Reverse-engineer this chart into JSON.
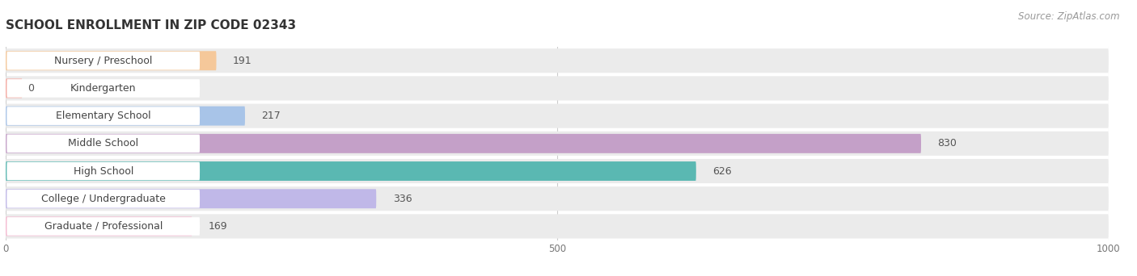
{
  "title": "SCHOOL ENROLLMENT IN ZIP CODE 02343",
  "source": "Source: ZipAtlas.com",
  "categories": [
    "Nursery / Preschool",
    "Kindergarten",
    "Elementary School",
    "Middle School",
    "High School",
    "College / Undergraduate",
    "Graduate / Professional"
  ],
  "values": [
    191,
    0,
    217,
    830,
    626,
    336,
    169
  ],
  "bar_colors": [
    "#f5c89a",
    "#f5a8a0",
    "#a8c4e8",
    "#c4a0c8",
    "#5ab8b2",
    "#c0b8e8",
    "#f5b8d0"
  ],
  "xlim": [
    0,
    1000
  ],
  "xticks": [
    0,
    500,
    1000
  ],
  "background_color": "#ffffff",
  "bar_bg_color": "#ebebeb",
  "title_fontsize": 11,
  "label_fontsize": 9,
  "value_fontsize": 9,
  "source_fontsize": 8.5,
  "bar_height": 0.7,
  "bar_gap": 0.3
}
